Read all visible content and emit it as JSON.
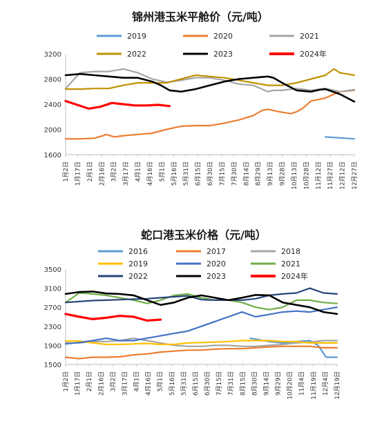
{
  "chart_data": [
    {
      "type": "line",
      "title": "锦州港玉米平舱价（元/吨）",
      "xlabel": "",
      "ylabel": "",
      "ylim": [
        1600,
        3200
      ],
      "yticks": [
        1600,
        2000,
        2400,
        2800,
        3200
      ],
      "grid": false,
      "legend": "top",
      "x_tick_labels": [
        "1月2日",
        "1月17日",
        "2月1日",
        "2月16日",
        "3月2日",
        "3月17日",
        "4月1日",
        "4月16日",
        "5月1日",
        "5月16日",
        "5月31日",
        "6月15日",
        "6月30日",
        "7月15日",
        "7月30日",
        "8月14日",
        "8月29日",
        "9月13日",
        "9月28日",
        "10月13日",
        "10月28日",
        "11月12日",
        "11月27日",
        "12月12日",
        "12月27日"
      ],
      "series": [
        {
          "name": "2019",
          "color": "#5b9bd5",
          "x": [
            0.9,
            1.0
          ],
          "values": [
            1880,
            1850
          ]
        },
        {
          "name": "2020",
          "color": "#ed7d31",
          "x": [
            0,
            0.05,
            0.1,
            0.13,
            0.14,
            0.17,
            0.2,
            0.25,
            0.3,
            0.35,
            0.4,
            0.45,
            0.5,
            0.55,
            0.6,
            0.65,
            0.68,
            0.7,
            0.74,
            0.78,
            0.8,
            0.82,
            0.85,
            0.9,
            0.95,
            1.0
          ],
          "values": [
            1850,
            1850,
            1860,
            1900,
            1920,
            1880,
            1900,
            1920,
            1940,
            2000,
            2050,
            2060,
            2060,
            2100,
            2150,
            2220,
            2300,
            2320,
            2280,
            2250,
            2280,
            2330,
            2450,
            2500,
            2600,
            2620
          ]
        },
        {
          "name": "2021",
          "color": "#a5a5a5",
          "x": [
            0,
            0.05,
            0.1,
            0.15,
            0.2,
            0.25,
            0.3,
            0.35,
            0.4,
            0.45,
            0.5,
            0.55,
            0.6,
            0.65,
            0.7,
            0.72,
            0.75,
            0.8,
            0.85,
            0.9,
            0.95,
            1.0
          ],
          "values": [
            2650,
            2900,
            2920,
            2920,
            2960,
            2900,
            2800,
            2750,
            2780,
            2820,
            2820,
            2780,
            2720,
            2700,
            2600,
            2620,
            2620,
            2650,
            2620,
            2650,
            2600,
            2630
          ]
        },
        {
          "name": "2022",
          "color": "#bf9000",
          "x": [
            0,
            0.05,
            0.1,
            0.15,
            0.2,
            0.25,
            0.3,
            0.35,
            0.4,
            0.45,
            0.5,
            0.55,
            0.6,
            0.65,
            0.7,
            0.75,
            0.8,
            0.85,
            0.9,
            0.93,
            0.95,
            1.0
          ],
          "values": [
            2640,
            2640,
            2650,
            2650,
            2700,
            2740,
            2740,
            2740,
            2800,
            2860,
            2840,
            2820,
            2780,
            2740,
            2700,
            2700,
            2740,
            2800,
            2860,
            2960,
            2900,
            2860
          ]
        },
        {
          "name": "2023",
          "color": "#000000",
          "x": [
            0,
            0.05,
            0.1,
            0.15,
            0.2,
            0.25,
            0.3,
            0.33,
            0.36,
            0.4,
            0.45,
            0.5,
            0.55,
            0.6,
            0.65,
            0.7,
            0.72,
            0.75,
            0.8,
            0.85,
            0.88,
            0.9,
            0.95,
            1.0
          ],
          "values": [
            2860,
            2880,
            2860,
            2840,
            2820,
            2820,
            2760,
            2700,
            2620,
            2600,
            2640,
            2700,
            2760,
            2800,
            2820,
            2840,
            2820,
            2740,
            2620,
            2600,
            2630,
            2640,
            2560,
            2440
          ]
        },
        {
          "name": "2024年",
          "color": "#ff0000",
          "x": [
            0,
            0.04,
            0.08,
            0.12,
            0.16,
            0.2,
            0.24,
            0.28,
            0.32,
            0.36
          ],
          "values": [
            2450,
            2390,
            2330,
            2360,
            2420,
            2400,
            2380,
            2380,
            2390,
            2370
          ]
        }
      ]
    },
    {
      "type": "line",
      "title": "蛇口港玉米价格（元/吨）",
      "xlabel": "",
      "ylabel": "",
      "ylim": [
        1500,
        3500
      ],
      "yticks": [
        1500,
        1900,
        2300,
        2700,
        3100,
        3500
      ],
      "grid": false,
      "legend": "top",
      "x_tick_labels": [
        "1月2日",
        "1月17日",
        "2月1日",
        "2月16日",
        "3月2日",
        "3月17日",
        "4月1日",
        "4月16日",
        "5月1日",
        "5月16日",
        "5月31日",
        "6月15日",
        "6月30日",
        "7月15日",
        "7月31日",
        "8月15日",
        "8月30日",
        "9月14日",
        "9月29日",
        "10月20日",
        "11月4日",
        "11月19日",
        "12月4日",
        "12月19日"
      ],
      "series": [
        {
          "name": "2016",
          "color": "#5b9bd5",
          "x": [
            0.68,
            0.75,
            0.8,
            0.85,
            0.9,
            0.93,
            0.96,
            1.0
          ],
          "values": [
            2050,
            1980,
            1950,
            1980,
            2000,
            1900,
            1650,
            1650
          ]
        },
        {
          "name": "2017",
          "color": "#ed7d31",
          "x": [
            0,
            0.05,
            0.1,
            0.15,
            0.2,
            0.25,
            0.3,
            0.35,
            0.4,
            0.45,
            0.5,
            0.55,
            0.6,
            0.65,
            0.7,
            0.75,
            0.8,
            0.85,
            0.9,
            0.95,
            1.0
          ],
          "values": [
            1650,
            1620,
            1650,
            1650,
            1660,
            1700,
            1720,
            1760,
            1780,
            1800,
            1800,
            1820,
            1830,
            1830,
            1850,
            1870,
            1880,
            1880,
            1880,
            1850,
            1850
          ]
        },
        {
          "name": "2018",
          "color": "#a5a5a5",
          "x": [
            0,
            0.05,
            0.1,
            0.15,
            0.2,
            0.25,
            0.3,
            0.35,
            0.4,
            0.45,
            0.5,
            0.55,
            0.6,
            0.65,
            0.7,
            0.75,
            0.8,
            0.85,
            0.9,
            0.95,
            1.0
          ],
          "values": [
            1950,
            1950,
            1980,
            1980,
            2000,
            2050,
            2000,
            1950,
            1900,
            1880,
            1880,
            1900,
            1900,
            1880,
            1880,
            1900,
            1920,
            1950,
            1970,
            2000,
            2000
          ]
        },
        {
          "name": "2019",
          "color": "#ffc000",
          "x": [
            0,
            0.05,
            0.1,
            0.15,
            0.2,
            0.25,
            0.3,
            0.35,
            0.4,
            0.45,
            0.5,
            0.55,
            0.6,
            0.65,
            0.7,
            0.75,
            0.8,
            0.85,
            0.9,
            0.95,
            1.0
          ],
          "values": [
            1990,
            1990,
            1950,
            1920,
            1920,
            1930,
            1940,
            1920,
            1920,
            1950,
            1960,
            1970,
            1980,
            2000,
            2000,
            2000,
            1980,
            1980,
            1950,
            1950,
            1950
          ]
        },
        {
          "name": "2020",
          "color": "#4472c4",
          "x": [
            0,
            0.05,
            0.1,
            0.15,
            0.2,
            0.25,
            0.3,
            0.35,
            0.4,
            0.45,
            0.5,
            0.55,
            0.6,
            0.65,
            0.7,
            0.75,
            0.8,
            0.85,
            0.9,
            0.95,
            1.0
          ],
          "values": [
            1930,
            1960,
            2000,
            2050,
            2000,
            2000,
            2050,
            2100,
            2150,
            2200,
            2300,
            2400,
            2500,
            2600,
            2500,
            2550,
            2600,
            2620,
            2600,
            2650,
            2700
          ]
        },
        {
          "name": "2021",
          "color": "#70ad47",
          "x": [
            0,
            0.05,
            0.1,
            0.15,
            0.2,
            0.25,
            0.3,
            0.35,
            0.4,
            0.45,
            0.5,
            0.55,
            0.6,
            0.65,
            0.7,
            0.75,
            0.8,
            0.85,
            0.9,
            0.95,
            1.0
          ],
          "values": [
            2800,
            3000,
            2980,
            2950,
            2900,
            2850,
            2780,
            2850,
            2950,
            2980,
            2900,
            2850,
            2850,
            2800,
            2700,
            2650,
            2700,
            2850,
            2850,
            2800,
            2780
          ]
        },
        {
          "name": "2022",
          "color": "#264478",
          "x": [
            0,
            0.05,
            0.1,
            0.15,
            0.2,
            0.25,
            0.3,
            0.35,
            0.4,
            0.45,
            0.5,
            0.55,
            0.6,
            0.65,
            0.7,
            0.75,
            0.8,
            0.85,
            0.9,
            0.95,
            1.0
          ],
          "values": [
            2800,
            2820,
            2840,
            2850,
            2860,
            2870,
            2880,
            2900,
            2920,
            2940,
            2860,
            2850,
            2850,
            2850,
            2880,
            2950,
            2980,
            3000,
            3100,
            3000,
            2980
          ]
        },
        {
          "name": "2023",
          "color": "#000000",
          "x": [
            0,
            0.05,
            0.1,
            0.15,
            0.2,
            0.25,
            0.3,
            0.35,
            0.4,
            0.45,
            0.5,
            0.55,
            0.6,
            0.65,
            0.7,
            0.75,
            0.8,
            0.85,
            0.9,
            0.95,
            1.0
          ],
          "values": [
            2980,
            3020,
            3030,
            2990,
            2980,
            2950,
            2850,
            2750,
            2800,
            2900,
            2950,
            2900,
            2850,
            2900,
            2960,
            2950,
            2800,
            2750,
            2700,
            2600,
            2560
          ]
        },
        {
          "name": "2024年",
          "color": "#ff0000",
          "x": [
            0,
            0.05,
            0.1,
            0.15,
            0.2,
            0.25,
            0.3,
            0.35
          ],
          "values": [
            2560,
            2500,
            2450,
            2480,
            2520,
            2500,
            2420,
            2440
          ]
        }
      ]
    }
  ]
}
